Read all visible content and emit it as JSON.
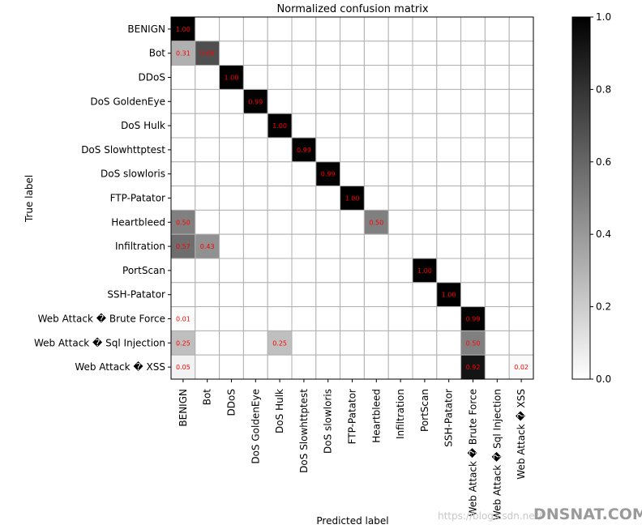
{
  "chart_data": {
    "type": "heatmap",
    "title": "Normalized confusion matrix",
    "xlabel": "Predicted label",
    "ylabel": "True label",
    "row_labels": [
      "BENIGN",
      "Bot",
      "DDoS",
      "DoS GoldenEye",
      "DoS Hulk",
      "DoS Slowhttptest",
      "DoS slowloris",
      "FTP-Patator",
      "Heartbleed",
      "Infiltration",
      "PortScan",
      "SSH-Patator",
      "Web Attack � Brute Force",
      "Web Attack � Sql Injection",
      "Web Attack � XSS"
    ],
    "col_labels": [
      "BENIGN",
      "Bot",
      "DDoS",
      "DoS GoldenEye",
      "DoS Hulk",
      "DoS Slowhttptest",
      "DoS slowloris",
      "FTP-Patator",
      "Heartbleed",
      "Infiltration",
      "PortScan",
      "SSH-Patator",
      "Web Attack � Brute Force",
      "Web Attack � Sql Injection",
      "Web Attack � XSS"
    ],
    "values": [
      [
        1.0,
        0,
        0,
        0,
        0,
        0,
        0,
        0,
        0,
        0,
        0,
        0,
        0,
        0,
        0
      ],
      [
        0.31,
        0.69,
        0,
        0,
        0,
        0,
        0,
        0,
        0,
        0,
        0,
        0,
        0,
        0,
        0
      ],
      [
        0,
        0,
        1.0,
        0,
        0,
        0,
        0,
        0,
        0,
        0,
        0,
        0,
        0,
        0,
        0
      ],
      [
        0,
        0,
        0,
        0.99,
        0,
        0,
        0,
        0,
        0,
        0,
        0,
        0,
        0,
        0,
        0
      ],
      [
        0,
        0,
        0,
        0,
        1.0,
        0,
        0,
        0,
        0,
        0,
        0,
        0,
        0,
        0,
        0
      ],
      [
        0,
        0,
        0,
        0,
        0,
        0.99,
        0,
        0,
        0,
        0,
        0,
        0,
        0,
        0,
        0
      ],
      [
        0,
        0,
        0,
        0,
        0,
        0,
        0.99,
        0,
        0,
        0,
        0,
        0,
        0,
        0,
        0
      ],
      [
        0,
        0,
        0,
        0,
        0,
        0,
        0,
        1.0,
        0,
        0,
        0,
        0,
        0,
        0,
        0
      ],
      [
        0.5,
        0,
        0,
        0,
        0,
        0,
        0,
        0,
        0.5,
        0,
        0,
        0,
        0,
        0,
        0
      ],
      [
        0.57,
        0.43,
        0,
        0,
        0,
        0,
        0,
        0,
        0,
        0,
        0,
        0,
        0,
        0,
        0
      ],
      [
        0,
        0,
        0,
        0,
        0,
        0,
        0,
        0,
        0,
        0,
        1.0,
        0,
        0,
        0,
        0
      ],
      [
        0,
        0,
        0,
        0,
        0,
        0,
        0,
        0,
        0,
        0,
        0,
        1.0,
        0,
        0,
        0
      ],
      [
        0.01,
        0,
        0,
        0,
        0,
        0,
        0,
        0,
        0,
        0,
        0,
        0,
        0.99,
        0,
        0
      ],
      [
        0.25,
        0,
        0,
        0,
        0.25,
        0,
        0,
        0,
        0,
        0,
        0,
        0,
        0.5,
        0,
        0
      ],
      [
        0.05,
        0,
        0,
        0,
        0,
        0,
        0,
        0,
        0,
        0,
        0,
        0,
        0.92,
        0,
        0.02
      ]
    ],
    "cell_labels": [
      [
        "1.00",
        "",
        "",
        "",
        "",
        "",
        "",
        "",
        "",
        "",
        "",
        "",
        "",
        "",
        ""
      ],
      [
        "0.31",
        "0.69",
        "",
        "",
        "",
        "",
        "",
        "",
        "",
        "",
        "",
        "",
        "",
        "",
        ""
      ],
      [
        "",
        "",
        "1.00",
        "",
        "",
        "",
        "",
        "",
        "",
        "",
        "",
        "",
        "",
        "",
        ""
      ],
      [
        "",
        "",
        "",
        "0.99",
        "",
        "",
        "",
        "",
        "",
        "",
        "",
        "",
        "",
        "",
        ""
      ],
      [
        "",
        "",
        "",
        "",
        "1.00",
        "",
        "",
        "",
        "",
        "",
        "",
        "",
        "",
        "",
        ""
      ],
      [
        "",
        "",
        "",
        "",
        "",
        "0.99",
        "",
        "",
        "",
        "",
        "",
        "",
        "",
        "",
        ""
      ],
      [
        "",
        "",
        "",
        "",
        "",
        "",
        "0.99",
        "",
        "",
        "",
        "",
        "",
        "",
        "",
        ""
      ],
      [
        "",
        "",
        "",
        "",
        "",
        "",
        "",
        "1.00",
        "",
        "",
        "",
        "",
        "",
        "",
        ""
      ],
      [
        "0.50",
        "",
        "",
        "",
        "",
        "",
        "",
        "",
        "0.50",
        "",
        "",
        "",
        "",
        "",
        ""
      ],
      [
        "0.57",
        "0.43",
        "",
        "",
        "",
        "",
        "",
        "",
        "",
        "",
        "",
        "",
        "",
        "",
        ""
      ],
      [
        "",
        "",
        "",
        "",
        "",
        "",
        "",
        "",
        "",
        "",
        "1.00",
        "",
        "",
        "",
        ""
      ],
      [
        "",
        "",
        "",
        "",
        "",
        "",
        "",
        "",
        "",
        "",
        "",
        "1.00",
        "",
        "",
        ""
      ],
      [
        "0.01",
        "",
        "",
        "",
        "",
        "",
        "",
        "",
        "",
        "",
        "",
        "",
        "0.99",
        "",
        ""
      ],
      [
        "0.25",
        "",
        "",
        "",
        "0.25",
        "",
        "",
        "",
        "",
        "",
        "",
        "",
        "0.50",
        "",
        ""
      ],
      [
        "0.05",
        "",
        "",
        "",
        "",
        "",
        "",
        "",
        "",
        "",
        "",
        "",
        "0.92",
        "",
        "0.02"
      ]
    ],
    "colormap": "Greys",
    "vmin": 0,
    "vmax": 1,
    "colorbar_ticks": [
      "0.0",
      "0.2",
      "0.4",
      "0.6",
      "0.8",
      "1.0"
    ],
    "cell_label_color": "#ff0000",
    "grid": true,
    "grid_color": "#b0b0b0"
  },
  "watermark": {
    "left_text": "https://blog.csdn.net/",
    "right_text": "DNSNAT.COM"
  }
}
